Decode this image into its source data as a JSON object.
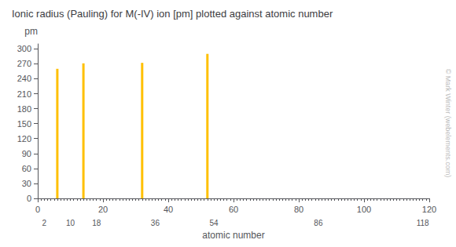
{
  "chart_data": {
    "type": "bar",
    "title": "Ionic radius (Pauling) for M(-IV) ion [pm] plotted against atomic number",
    "xlabel": "atomic number",
    "ylabel": "pm",
    "x": [
      6,
      14,
      32,
      52
    ],
    "values": [
      260,
      271,
      272,
      290
    ],
    "color": "#ffc000",
    "xlim": [
      0,
      120
    ],
    "xticks": [
      0,
      20,
      40,
      60,
      80,
      100,
      120
    ],
    "ylim": [
      0,
      310
    ],
    "yticks": [
      0,
      30,
      60,
      90,
      120,
      150,
      180,
      210,
      240,
      270,
      300
    ],
    "grid": false,
    "annotations": [
      {
        "x": 2,
        "text": "2"
      },
      {
        "x": 10,
        "text": "10"
      },
      {
        "x": 18,
        "text": "18"
      },
      {
        "x": 36,
        "text": "36"
      },
      {
        "x": 54,
        "text": "54"
      },
      {
        "x": 86,
        "text": "86"
      },
      {
        "x": 118,
        "text": "118"
      }
    ],
    "watermark": "© Mark Winter (webelements.com)"
  }
}
